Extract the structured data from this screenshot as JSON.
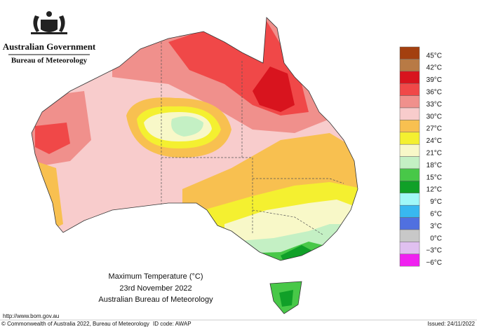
{
  "header": {
    "government": "Australian Government",
    "agency": "Bureau of Meteorology"
  },
  "legend": [
    {
      "label": "45°C",
      "color": "#a3400f"
    },
    {
      "label": "42°C",
      "color": "#b87a45"
    },
    {
      "label": "39°C",
      "color": "#d8141e"
    },
    {
      "label": "36°C",
      "color": "#f04848"
    },
    {
      "label": "33°C",
      "color": "#f0908c"
    },
    {
      "label": "30°C",
      "color": "#f8cccc"
    },
    {
      "label": "27°C",
      "color": "#f8c050"
    },
    {
      "label": "24°C",
      "color": "#f4f030"
    },
    {
      "label": "21°C",
      "color": "#f8f8c8"
    },
    {
      "label": "18°C",
      "color": "#c4f0c4"
    },
    {
      "label": "15°C",
      "color": "#48c848"
    },
    {
      "label": "12°C",
      "color": "#10a028"
    },
    {
      "label": "9°C",
      "color": "#a0f8f8"
    },
    {
      "label": "6°C",
      "color": "#38b8f0"
    },
    {
      "label": "3°C",
      "color": "#5070e0"
    },
    {
      "label": "0°C",
      "color": "#c8c8c8"
    },
    {
      "label": "−3°C",
      "color": "#e0c0f0"
    },
    {
      "label": "−6°C",
      "color": "#f020f0"
    }
  ],
  "caption": {
    "title": "Maximum Temperature (°C)",
    "date": "23rd November 2022",
    "source": "Australian Bureau of Meteorology"
  },
  "footer": {
    "url": "http://www.bom.gov.au",
    "copyright": "© Commonwealth of Australia 2022, Bureau of Meteorology",
    "id_code": "ID code: AWAP",
    "issued": "Issued: 24/11/2022"
  }
}
